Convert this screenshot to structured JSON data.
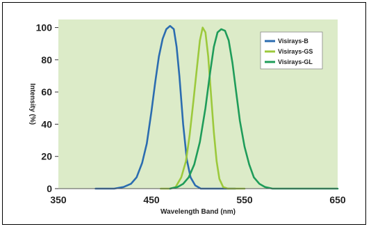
{
  "chart_data": {
    "type": "line",
    "xlabel": "Wavelength Band (nm)",
    "ylabel": "Intensity (%)",
    "xlim": [
      350,
      650
    ],
    "ylim": [
      0,
      105
    ],
    "x_ticks": [
      350,
      450,
      550,
      650
    ],
    "y_ticks": [
      0,
      20,
      40,
      60,
      80,
      100
    ],
    "plot_background": "#dcebc8",
    "legend_position": "top-right",
    "series": [
      {
        "name": "Visirays-B",
        "color": "#2b6cb0",
        "points": [
          [
            390,
            0
          ],
          [
            410,
            0
          ],
          [
            420,
            1
          ],
          [
            428,
            3
          ],
          [
            434,
            7
          ],
          [
            440,
            16
          ],
          [
            445,
            28
          ],
          [
            450,
            48
          ],
          [
            454,
            66
          ],
          [
            458,
            82
          ],
          [
            462,
            93
          ],
          [
            466,
            99
          ],
          [
            470,
            101
          ],
          [
            474,
            99
          ],
          [
            477,
            88
          ],
          [
            480,
            70
          ],
          [
            484,
            40
          ],
          [
            488,
            18
          ],
          [
            492,
            7
          ],
          [
            497,
            2
          ],
          [
            503,
            0
          ],
          [
            540,
            0
          ]
        ]
      },
      {
        "name": "Visirays-GS",
        "color": "#9cc93c",
        "points": [
          [
            460,
            0
          ],
          [
            470,
            0
          ],
          [
            476,
            1
          ],
          [
            482,
            7
          ],
          [
            487,
            17
          ],
          [
            491,
            33
          ],
          [
            495,
            54
          ],
          [
            499,
            76
          ],
          [
            502,
            92
          ],
          [
            505,
            100
          ],
          [
            508,
            97
          ],
          [
            511,
            82
          ],
          [
            514,
            58
          ],
          [
            517,
            35
          ],
          [
            520,
            17
          ],
          [
            523,
            6
          ],
          [
            527,
            1
          ],
          [
            532,
            0
          ],
          [
            550,
            0
          ]
        ]
      },
      {
        "name": "Visirays-GL",
        "color": "#1f9c5a",
        "points": [
          [
            470,
            0
          ],
          [
            478,
            1
          ],
          [
            484,
            3
          ],
          [
            490,
            7
          ],
          [
            496,
            15
          ],
          [
            502,
            29
          ],
          [
            508,
            50
          ],
          [
            513,
            72
          ],
          [
            517,
            88
          ],
          [
            521,
            97
          ],
          [
            525,
            99
          ],
          [
            529,
            98
          ],
          [
            533,
            92
          ],
          [
            537,
            78
          ],
          [
            541,
            60
          ],
          [
            545,
            42
          ],
          [
            550,
            26
          ],
          [
            555,
            15
          ],
          [
            560,
            7
          ],
          [
            566,
            3
          ],
          [
            572,
            1
          ],
          [
            580,
            0
          ],
          [
            650,
            0
          ]
        ]
      }
    ]
  }
}
